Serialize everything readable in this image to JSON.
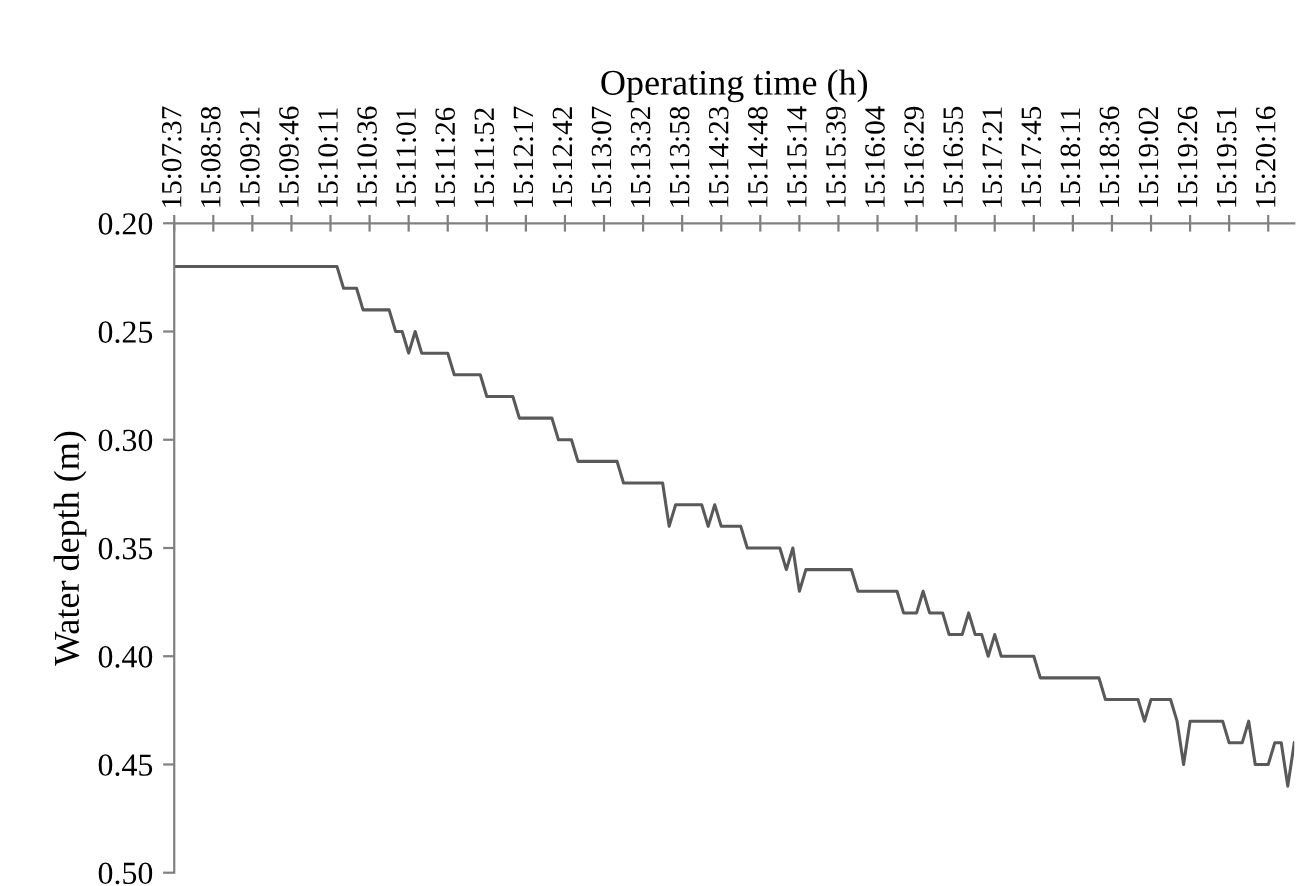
{
  "chart_data": {
    "type": "line",
    "xlabel": "Operating time (h)",
    "ylabel": "Water depth (m)",
    "categories": [
      "15:07:37",
      null,
      null,
      null,
      null,
      null,
      "15:08:58",
      null,
      null,
      null,
      null,
      null,
      "15:09:21",
      null,
      null,
      null,
      null,
      null,
      "15:09:46",
      null,
      null,
      null,
      null,
      null,
      "15:10:11",
      null,
      null,
      null,
      null,
      null,
      "15:10:36",
      null,
      null,
      null,
      null,
      null,
      "15:11:01",
      null,
      null,
      null,
      null,
      null,
      "15:11:26",
      null,
      null,
      null,
      null,
      null,
      "15:11:52",
      null,
      null,
      null,
      null,
      null,
      "15:12:17",
      null,
      null,
      null,
      null,
      null,
      "15:12:42",
      null,
      null,
      null,
      null,
      null,
      "15:13:07",
      null,
      null,
      null,
      null,
      null,
      "15:13:32",
      null,
      null,
      null,
      null,
      null,
      "15:13:58",
      null,
      null,
      null,
      null,
      null,
      "15:14:23",
      null,
      null,
      null,
      null,
      null,
      "15:14:48",
      null,
      null,
      null,
      null,
      null,
      "15:15:14",
      null,
      null,
      null,
      null,
      null,
      "15:15:39",
      null,
      null,
      null,
      null,
      null,
      "15:16:04",
      null,
      null,
      null,
      null,
      null,
      "15:16:29",
      null,
      null,
      null,
      null,
      null,
      "15:16:55",
      null,
      null,
      null,
      null,
      null,
      "15:17:21",
      null,
      null,
      null,
      null,
      null,
      "15:17:45",
      null,
      null,
      null,
      null,
      null,
      "15:18:11",
      null,
      null,
      null,
      null,
      null,
      "15:18:36",
      null,
      null,
      null,
      null,
      null,
      "15:19:02",
      null,
      null,
      null,
      null,
      null,
      "15:19:26",
      null,
      null,
      null,
      null,
      null,
      "15:19:51",
      null,
      null,
      null,
      null,
      null,
      "15:20:16",
      null,
      null,
      null,
      null
    ],
    "series": [
      {
        "color": "#595959",
        "values": [
          0.22,
          0.22,
          0.22,
          0.22,
          0.22,
          0.22,
          0.22,
          0.22,
          0.22,
          0.22,
          0.22,
          0.22,
          0.22,
          0.22,
          0.22,
          0.22,
          0.22,
          0.22,
          0.22,
          0.22,
          0.22,
          0.22,
          0.22,
          0.22,
          0.22,
          0.22,
          0.23,
          0.23,
          0.23,
          0.24,
          0.24,
          0.24,
          0.24,
          0.24,
          0.25,
          0.25,
          0.26,
          0.25,
          0.26,
          0.26,
          0.26,
          0.26,
          0.26,
          0.27,
          0.27,
          0.27,
          0.27,
          0.27,
          0.28,
          0.28,
          0.28,
          0.28,
          0.28,
          0.29,
          0.29,
          0.29,
          0.29,
          0.29,
          0.29,
          0.3,
          0.3,
          0.3,
          0.31,
          0.31,
          0.31,
          0.31,
          0.31,
          0.31,
          0.31,
          0.32,
          0.32,
          0.32,
          0.32,
          0.32,
          0.32,
          0.32,
          0.34,
          0.33,
          0.33,
          0.33,
          0.33,
          0.33,
          0.34,
          0.33,
          0.34,
          0.34,
          0.34,
          0.34,
          0.35,
          0.35,
          0.35,
          0.35,
          0.35,
          0.35,
          0.36,
          0.35,
          0.37,
          0.36,
          0.36,
          0.36,
          0.36,
          0.36,
          0.36,
          0.36,
          0.36,
          0.37,
          0.37,
          0.37,
          0.37,
          0.37,
          0.37,
          0.37,
          0.38,
          0.38,
          0.38,
          0.37,
          0.38,
          0.38,
          0.38,
          0.39,
          0.39,
          0.39,
          0.38,
          0.39,
          0.39,
          0.4,
          0.39,
          0.4,
          0.4,
          0.4,
          0.4,
          0.4,
          0.4,
          0.41,
          0.41,
          0.41,
          0.41,
          0.41,
          0.41,
          0.41,
          0.41,
          0.41,
          0.41,
          0.42,
          0.42,
          0.42,
          0.42,
          0.42,
          0.42,
          0.43,
          0.42,
          0.42,
          0.42,
          0.42,
          0.43,
          0.45,
          0.43,
          0.43,
          0.43,
          0.43,
          0.43,
          0.43,
          0.44,
          0.44,
          0.44,
          0.43,
          0.45,
          0.45,
          0.45,
          0.44,
          0.44,
          0.46,
          0.44
        ]
      }
    ],
    "ylim": [
      0.5,
      0.2
    ],
    "yticks": [
      {
        "value": 0.2,
        "label": "0.20"
      },
      {
        "value": 0.25,
        "label": "0.25"
      },
      {
        "value": 0.3,
        "label": "0.30"
      },
      {
        "value": 0.35,
        "label": "0.35"
      },
      {
        "value": 0.4,
        "label": "0.40"
      },
      {
        "value": 0.45,
        "label": "0.45"
      },
      {
        "value": 0.5,
        "label": "0.50"
      }
    ],
    "line_style": "solid"
  }
}
